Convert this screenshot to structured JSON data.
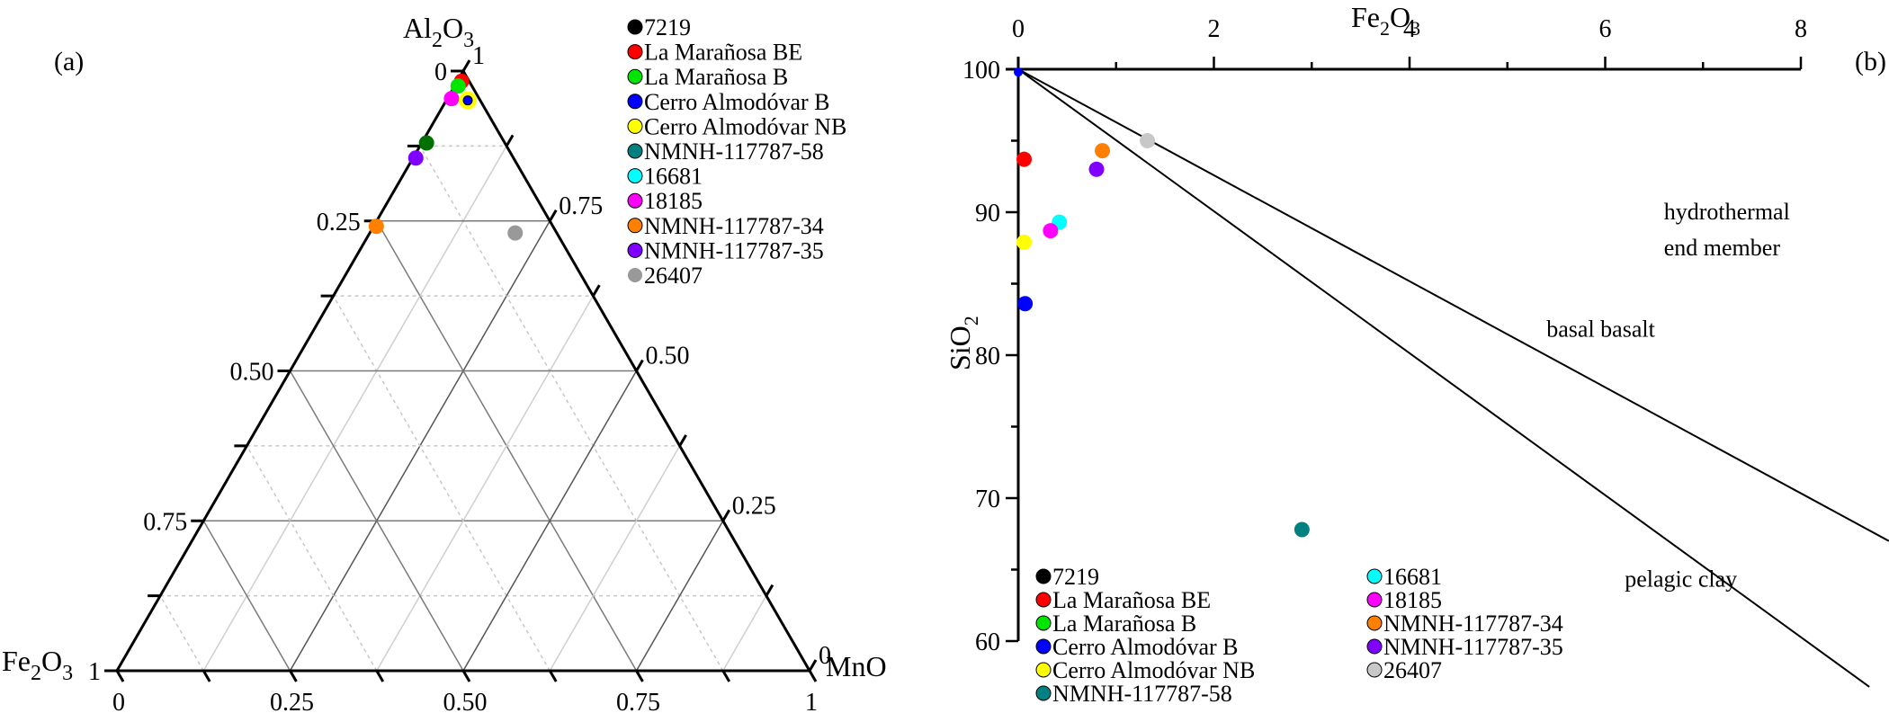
{
  "figure": {
    "panels": [
      "(a)",
      "(b)"
    ]
  },
  "colors": {
    "7219": "#000000",
    "La Marañosa BE": "#ff0000",
    "La Marañosa B": "#00e600",
    "Cerro Almodóvar B": "#0000ff",
    "Cerro Almodóvar NB": "#ffff00",
    "NMNH-117787-58": "#008080",
    "16681": "#00ffff",
    "18185": "#ff00ff",
    "NMNH-117787-34": "#ff8000",
    "NMNH-117787-35": "#8000ff",
    "26407": "#999999",
    "26407_b": "#c8c8c8",
    "dark_green_point": "#007000"
  },
  "chart_data": [
    {
      "panel": "(a)",
      "type": "scatter",
      "subtype": "ternary",
      "title": "",
      "axes": {
        "top": "Al2O3",
        "left": "Fe2O3",
        "right": "MnO"
      },
      "axis_labels": {
        "apex": {
          "main": "Al",
          "sub1": "2",
          "mid": "O",
          "sub2": "3"
        },
        "left": {
          "main": "Fe",
          "sub1": "2",
          "mid": "O",
          "sub2": "3"
        },
        "right": "MnO"
      },
      "ticks": {
        "left_axis_Fe2O3": [
          "0",
          "0.25",
          "0.50",
          "0.75",
          "1"
        ],
        "bottom_axis_MnO": [
          "0",
          "0.25",
          "0.50",
          "0.75",
          "1"
        ],
        "right_axis_Al2O3": [
          "1",
          "0.75",
          "0.50",
          "0.25",
          "0"
        ]
      },
      "grid": true,
      "legend": {
        "position": "top-right",
        "entries": [
          "7219",
          "La Marañosa BE",
          "La Marañosa B",
          "Cerro Almodóvar B",
          "Cerro Almodóvar NB",
          "NMNH-117787-58",
          "16681",
          "18185",
          "NMNH-117787-34",
          "NMNH-117787-35",
          "26407"
        ]
      },
      "points": [
        {
          "name": "La Marañosa BE",
          "Al2O3": 0.983,
          "Fe2O3": 0.011,
          "MnO": 0.006
        },
        {
          "name": "La Marañosa B",
          "Al2O3": 0.975,
          "Fe2O3": 0.02,
          "MnO": 0.005
        },
        {
          "name": "18185",
          "Al2O3": 0.954,
          "Fe2O3": 0.04,
          "MnO": 0.006
        },
        {
          "name": "Cerro Almodóvar NB",
          "Al2O3": 0.951,
          "Fe2O3": 0.018,
          "MnO": 0.031
        },
        {
          "name": "Cerro Almodóvar B",
          "Al2O3": 0.951,
          "Fe2O3": 0.018,
          "MnO": 0.031
        },
        {
          "name": "NMNH-117787-58",
          "Al2O3": 0.88,
          "Fe2O3": 0.113,
          "MnO": 0.007,
          "color_override": "#007000"
        },
        {
          "name": "NMNH-117787-35",
          "Al2O3": 0.855,
          "Fe2O3": 0.141,
          "MnO": 0.004
        },
        {
          "name": "NMNH-117787-34",
          "Al2O3": 0.741,
          "Fe2O3": 0.255,
          "MnO": 0.004
        },
        {
          "name": "26407",
          "Al2O3": 0.73,
          "Fe2O3": 0.06,
          "MnO": 0.21
        }
      ]
    },
    {
      "panel": "(b)",
      "type": "scatter",
      "title": "",
      "xlabel": "Fe2O3",
      "ylabel": "SiO2",
      "xlim": [
        0,
        8
      ],
      "ylim": [
        60,
        100
      ],
      "x_axis_position": "top",
      "xticks": [
        0,
        2,
        4,
        6,
        8
      ],
      "xminor": [
        1,
        3,
        5,
        7
      ],
      "yticks": [
        100,
        90,
        80,
        70,
        60
      ],
      "yminor": [
        95,
        85,
        75,
        65
      ],
      "grid": false,
      "lines": [
        {
          "name": "hydrothermal-basal-basalt boundary",
          "from": [
            0,
            100
          ],
          "to": [
            8.9,
            67
          ]
        },
        {
          "name": "basal basalt-pelagic clay boundary",
          "from": [
            0,
            100
          ],
          "to": [
            8.7,
            56.8
          ]
        }
      ],
      "annotations": [
        {
          "text_line1": "hydrothermal",
          "text_line2": "end member",
          "x": 6.6,
          "y": 89.5
        },
        {
          "text": "basal basalt",
          "x": 5.4,
          "y": 81.3
        },
        {
          "text": "pelagic clay",
          "x": 6.2,
          "y": 63.8
        }
      ],
      "legend": {
        "position": "bottom-left",
        "columns": [
          [
            "7219",
            "La Marañosa BE",
            "La Marañosa B",
            "Cerro Almodóvar B",
            "Cerro Almodóvar NB",
            "NMNH-117787-58"
          ],
          [
            "16681",
            "18185",
            "NMNH-117787-34",
            "NMNH-117787-35",
            "26407"
          ]
        ]
      },
      "points": [
        {
          "name": "Cerro Almodóvar B",
          "Fe2O3": 0.0,
          "SiO2": 99.8,
          "partial": true
        },
        {
          "name": "La Marañosa BE",
          "Fe2O3": 0.06,
          "SiO2": 93.7
        },
        {
          "name": "26407",
          "Fe2O3": 1.32,
          "SiO2": 95.0
        },
        {
          "name": "NMNH-117787-34",
          "Fe2O3": 0.86,
          "SiO2": 94.3
        },
        {
          "name": "NMNH-117787-35",
          "Fe2O3": 0.8,
          "SiO2": 93.0
        },
        {
          "name": "16681",
          "Fe2O3": 0.42,
          "SiO2": 89.3
        },
        {
          "name": "18185",
          "Fe2O3": 0.33,
          "SiO2": 88.7
        },
        {
          "name": "Cerro Almodóvar NB",
          "Fe2O3": 0.06,
          "SiO2": 87.9
        },
        {
          "name": "Cerro Almodóvar B",
          "Fe2O3": 0.07,
          "SiO2": 83.6
        },
        {
          "name": "NMNH-117787-58",
          "Fe2O3": 2.9,
          "SiO2": 67.8
        }
      ]
    }
  ]
}
